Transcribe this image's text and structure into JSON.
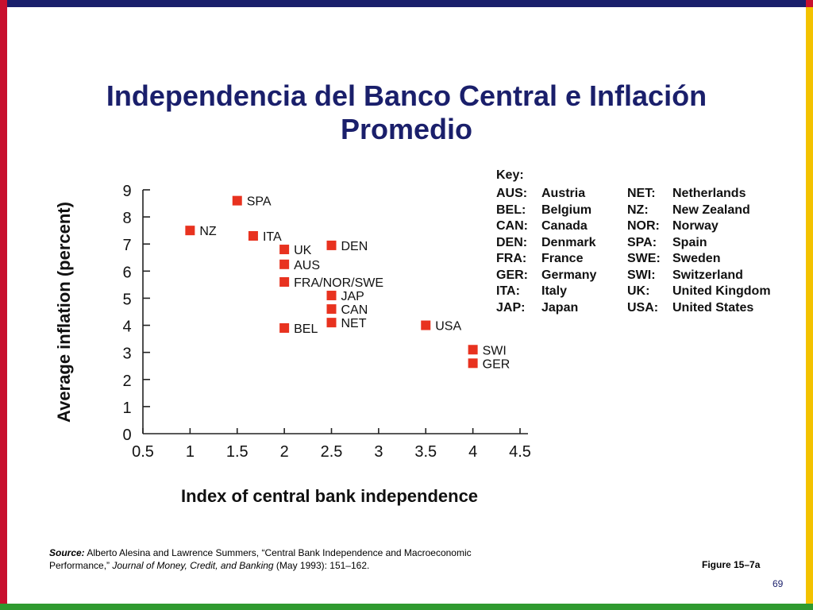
{
  "slide": {
    "title_line1": "Independencia del Banco Central e Inflación",
    "title_line2": "Promedio",
    "page_number": "69",
    "figure_label": "Figure 15–7a"
  },
  "source": {
    "label": "Source:",
    "text1": " Alberto Alesina and Lawrence Summers, “Central Bank Independence and Macroeconomic Performance,” ",
    "journal": "Journal of Money, Credit, and Banking",
    "text2": " (May 1993): 151–162."
  },
  "key": {
    "title": "Key:",
    "entries": [
      {
        "code": "AUS:",
        "name": "Austria"
      },
      {
        "code": "BEL:",
        "name": "Belgium"
      },
      {
        "code": "CAN:",
        "name": "Canada"
      },
      {
        "code": "DEN:",
        "name": "Denmark"
      },
      {
        "code": "FRA:",
        "name": "France"
      },
      {
        "code": "GER:",
        "name": "Germany"
      },
      {
        "code": "ITA:",
        "name": "Italy"
      },
      {
        "code": "JAP:",
        "name": "Japan"
      },
      {
        "code": "NET:",
        "name": "Netherlands"
      },
      {
        "code": "NZ:",
        "name": "New Zealand"
      },
      {
        "code": "NOR:",
        "name": "Norway"
      },
      {
        "code": "SPA:",
        "name": "Spain"
      },
      {
        "code": "SWE:",
        "name": "Sweden"
      },
      {
        "code": "SWI:",
        "name": "Switzerland"
      },
      {
        "code": "UK:",
        "name": "United Kingdom"
      },
      {
        "code": "USA:",
        "name": "United States"
      }
    ]
  },
  "colors": {
    "title": "#1a1f6b",
    "marker": "#e8321f",
    "top_bar": "#1a1f6b",
    "left_bar": "#c8102e",
    "right_bar": "#f3c200",
    "bottom_bar": "#2f9a2f"
  },
  "chart_data": {
    "type": "scatter",
    "title": "",
    "xlabel": "Index of central bank independence",
    "ylabel": "Average inflation (percent)",
    "xlim": [
      0.5,
      4.5
    ],
    "ylim": [
      0,
      9
    ],
    "xticks": [
      "0.5",
      "1",
      "1.5",
      "2",
      "2.5",
      "3",
      "3.5",
      "4",
      "4.5"
    ],
    "yticks": [
      "0",
      "1",
      "2",
      "3",
      "4",
      "5",
      "6",
      "7",
      "8",
      "9"
    ],
    "points": [
      {
        "label": "SPA",
        "x": 1.5,
        "y": 8.6
      },
      {
        "label": "NZ",
        "x": 1.0,
        "y": 7.5
      },
      {
        "label": "ITA",
        "x": 1.67,
        "y": 7.3
      },
      {
        "label": "UK",
        "x": 2.0,
        "y": 6.8
      },
      {
        "label": "DEN",
        "x": 2.5,
        "y": 6.95
      },
      {
        "label": "AUS",
        "x": 2.0,
        "y": 6.25
      },
      {
        "label": "FRA/NOR/SWE",
        "x": 2.0,
        "y": 5.6
      },
      {
        "label": "JAP",
        "x": 2.5,
        "y": 5.1
      },
      {
        "label": "CAN",
        "x": 2.5,
        "y": 4.6
      },
      {
        "label": "NET",
        "x": 2.5,
        "y": 4.1
      },
      {
        "label": "BEL",
        "x": 2.0,
        "y": 3.9
      },
      {
        "label": "USA",
        "x": 3.5,
        "y": 4.0
      },
      {
        "label": "SWI",
        "x": 4.0,
        "y": 3.1
      },
      {
        "label": "GER",
        "x": 4.0,
        "y": 2.6
      }
    ]
  }
}
